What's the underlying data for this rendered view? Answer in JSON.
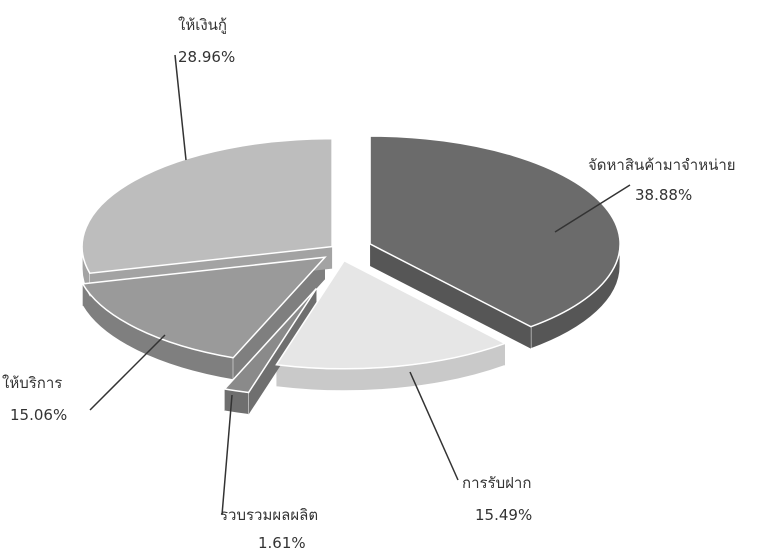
{
  "chart_data": {
    "type": "pie",
    "title": "",
    "slices": [
      {
        "label": "จัดหาสินค้ามาจำหน่าย",
        "value": 38.88,
        "display": "38.88%",
        "color": "#6b6b6b",
        "side": "#565656"
      },
      {
        "label": "การรับฝาก",
        "value": 15.49,
        "display": "15.49%",
        "color": "#e6e6e6",
        "side": "#c9c9c9"
      },
      {
        "label": "รวบรวมผลผลิต",
        "value": 1.61,
        "display": "1.61%",
        "color": "#8a8a8a",
        "side": "#6f6f6f"
      },
      {
        "label": "ให้บริการ",
        "value": 15.06,
        "display": "15.06%",
        "color": "#9a9a9a",
        "side": "#7f7f7f"
      },
      {
        "label": "ให้เงินกู้",
        "value": 28.96,
        "display": "28.96%",
        "color": "#bdbdbd",
        "side": "#a3a3a3"
      }
    ],
    "exploded": true,
    "three_d": true,
    "legend": "none"
  }
}
